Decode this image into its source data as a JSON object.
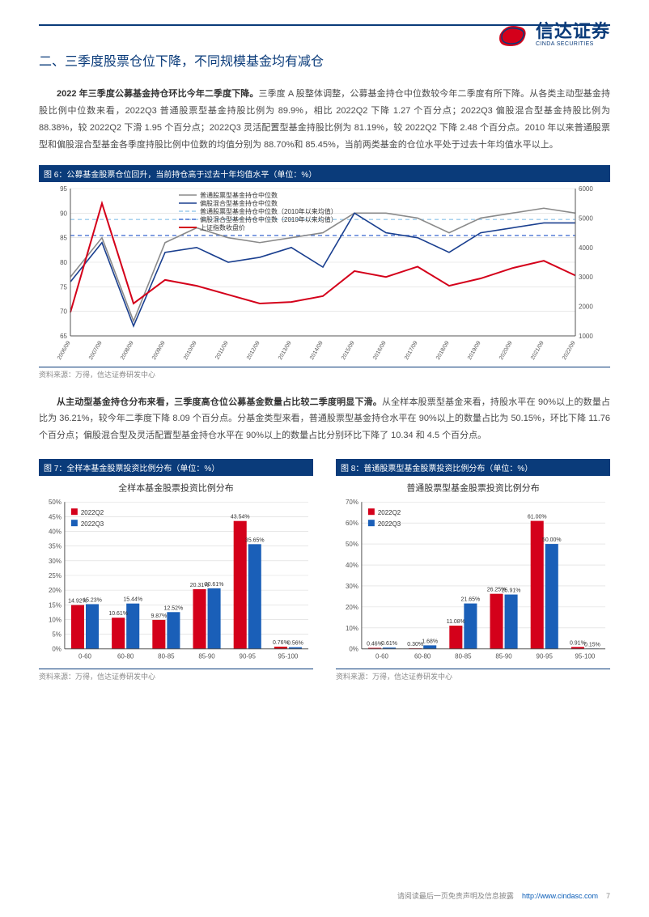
{
  "brand": {
    "cn": "信达证券",
    "en": "CINDA SECURITIES"
  },
  "section_title": "二、三季度股票仓位下降，不同规模基金均有减仓",
  "para1": {
    "bold": "2022 年三季度公募基金持仓环比今年二季度下降。",
    "rest": "三季度 A 股整体调整，公募基金持仓中位数较今年二季度有所下降。从各类主动型基金持股比例中位数来看，2022Q3 普通股票型基金持股比例为 89.9%，相比 2022Q2 下降 1.27 个百分点；2022Q3 偏股混合型基金持股比例为 88.38%，较 2022Q2 下滑 1.95 个百分点；2022Q3 灵活配置型基金持股比例为 81.19%，较 2022Q2 下降 2.48 个百分点。2010 年以来普通股票型和偏股混合型基金各季度持股比例中位数的均值分别为 88.70%和 85.45%，当前两类基金的仓位水平处于过去十年均值水平以上。"
  },
  "fig6": {
    "title": "图 6：公募基金股票仓位回升，当前持仓高于过去十年均值水平（单位：%）",
    "legend": [
      "普通股票型基金持仓中位数",
      "偏股混合型基金持仓中位数",
      "普通股票型基金持仓中位数（2010年以来均值）",
      "偏股混合型基金持仓中位数（2010年以来均值）",
      "上证指数收盘价"
    ],
    "colors": {
      "s1": "#8a8a8a",
      "s2": "#1a3f8f",
      "m1": "#9cccec",
      "m2": "#4a74d4",
      "idx": "#d4001a",
      "grid": "#d9d9d9",
      "axis": "#555"
    },
    "yleft": {
      "min": 65,
      "max": 95,
      "step": 5
    },
    "yright": {
      "min": 1000,
      "max": 6000,
      "step": 1000
    },
    "mean1": 88.7,
    "mean2": 85.45,
    "xlabels": [
      "2006/09",
      "2007/09",
      "2008/09",
      "2009/09",
      "2010/09",
      "2011/09",
      "2012/09",
      "2013/09",
      "2014/09",
      "2015/09",
      "2016/09",
      "2017/09",
      "2018/09",
      "2019/09",
      "2020/09",
      "2021/09",
      "2022/09"
    ],
    "s1": [
      77,
      85,
      68,
      84,
      87,
      85,
      84,
      85,
      86,
      90,
      90,
      89,
      86,
      89,
      90,
      91,
      90
    ],
    "s2": [
      76,
      84,
      67,
      82,
      83,
      80,
      81,
      83,
      79,
      90,
      86,
      85,
      82,
      86,
      87,
      88,
      88
    ],
    "idx": [
      1800,
      5500,
      2100,
      2900,
      2700,
      2400,
      2100,
      2150,
      2350,
      3200,
      3000,
      3350,
      2700,
      2950,
      3300,
      3550,
      3050
    ],
    "source": "资料来源：万得，信达证券研发中心"
  },
  "para2": {
    "bold": "从主动型基金持仓分布来看，三季度高仓位公募基金数量占比较二季度明显下滑。",
    "rest": "从全样本股票型基金来看，持股水平在 90%以上的数量占比为 36.21%，较今年二季度下降 8.09 个百分点。分基金类型来看，普通股票型基金持仓水平在 90%以上的数量占比为 50.15%，环比下降 11.76 个百分点；偏股混合型及灵活配置型基金持仓水平在 90%以上的数量占比分别环比下降了 10.34 和 4.5 个百分点。"
  },
  "fig7": {
    "title": "图 7：全样本基金股票投资比例分布（单位：%）",
    "chart_title": "全样本基金股票投资比例分布",
    "legend": [
      "2022Q2",
      "2022Q3"
    ],
    "colors": {
      "q2": "#d4001a",
      "q3": "#1a5fb8",
      "grid": "#d9d9d9",
      "axis": "#555",
      "text": "#333"
    },
    "ymax": 50,
    "ystep": 5,
    "categories": [
      "0-60",
      "60-80",
      "80-85",
      "85-90",
      "90-95",
      "95-100"
    ],
    "q2": [
      14.92,
      10.61,
      9.87,
      20.31,
      43.54,
      0.76
    ],
    "q3": [
      15.23,
      15.44,
      12.52,
      20.61,
      35.65,
      0.56
    ],
    "source": "资料来源：万得，信达证券研发中心"
  },
  "fig8": {
    "title": "图 8：普通股票型基金股票投资比例分布（单位：%）",
    "chart_title": "普通股票型基金股票投资比例分布",
    "legend": [
      "2022Q2",
      "2022Q3"
    ],
    "colors": {
      "q2": "#d4001a",
      "q3": "#1a5fb8",
      "grid": "#d9d9d9",
      "axis": "#555",
      "text": "#333"
    },
    "ymax": 70,
    "ystep": 10,
    "categories": [
      "0-60",
      "60-80",
      "80-85",
      "85-90",
      "90-95",
      "95-100"
    ],
    "q2": [
      0.46,
      0.3,
      11.08,
      26.25,
      61.0,
      0.91
    ],
    "q3": [
      0.61,
      1.68,
      21.65,
      25.91,
      50.0,
      0.15
    ],
    "source": "资料来源：万得，信达证券研发中心"
  },
  "footer": {
    "text": "请阅读最后一页免责声明及信息披露",
    "url": "http://www.cindasc.com",
    "page": "7"
  }
}
